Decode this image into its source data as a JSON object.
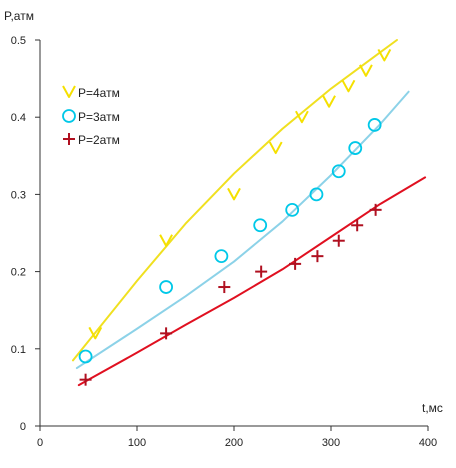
{
  "chart_data": {
    "type": "scatter",
    "title": "",
    "xlabel": "t,мс",
    "ylabel": "P,атм",
    "xlim": [
      0,
      400
    ],
    "ylim": [
      0,
      0.5
    ],
    "x_ticks": [
      "0",
      "100",
      "200",
      "300",
      "400"
    ],
    "y_ticks": [
      "0",
      "0.1",
      "0.2",
      "0.3",
      "0.4",
      "0.5"
    ],
    "legend_position": "top-left",
    "grid": false,
    "series": [
      {
        "name": "P=4атм",
        "marker": "triangle-down",
        "color": "#f5e000",
        "points": [
          [
            57,
            0.12
          ],
          [
            130,
            0.24
          ],
          [
            200,
            0.3
          ],
          [
            243,
            0.36
          ],
          [
            270,
            0.4
          ],
          [
            298,
            0.42
          ],
          [
            318,
            0.44
          ],
          [
            336,
            0.46
          ],
          [
            355,
            0.48
          ]
        ],
        "fit_line": [
          [
            34,
            0.085
          ],
          [
            100,
            0.188
          ],
          [
            150,
            0.262
          ],
          [
            200,
            0.327
          ],
          [
            250,
            0.385
          ],
          [
            300,
            0.437
          ],
          [
            368,
            0.5
          ]
        ]
      },
      {
        "name": "P=3атм",
        "marker": "circle",
        "color": "#00c8e8",
        "points": [
          [
            47,
            0.09
          ],
          [
            130,
            0.18
          ],
          [
            187,
            0.22
          ],
          [
            227,
            0.26
          ],
          [
            260,
            0.28
          ],
          [
            285,
            0.3
          ],
          [
            308,
            0.33
          ],
          [
            325,
            0.36
          ],
          [
            345,
            0.39
          ]
        ],
        "fit_line": [
          [
            38,
            0.075
          ],
          [
            100,
            0.126
          ],
          [
            150,
            0.168
          ],
          [
            200,
            0.213
          ],
          [
            250,
            0.265
          ],
          [
            300,
            0.325
          ],
          [
            350,
            0.39
          ],
          [
            380,
            0.433
          ]
        ]
      },
      {
        "name": "P=2атм",
        "marker": "plus",
        "color": "#b01020",
        "points": [
          [
            47,
            0.06
          ],
          [
            130,
            0.12
          ],
          [
            190,
            0.18
          ],
          [
            228,
            0.2
          ],
          [
            263,
            0.21
          ],
          [
            286,
            0.22
          ],
          [
            308,
            0.24
          ],
          [
            327,
            0.26
          ],
          [
            346,
            0.28
          ]
        ],
        "fit_line": [
          [
            40,
            0.053
          ],
          [
            100,
            0.095
          ],
          [
            150,
            0.131
          ],
          [
            200,
            0.166
          ],
          [
            250,
            0.203
          ],
          [
            300,
            0.245
          ],
          [
            350,
            0.287
          ],
          [
            397,
            0.322
          ]
        ]
      }
    ],
    "fit_line_colors": [
      "#f0e020",
      "#8cd2e8",
      "#e01020"
    ]
  }
}
